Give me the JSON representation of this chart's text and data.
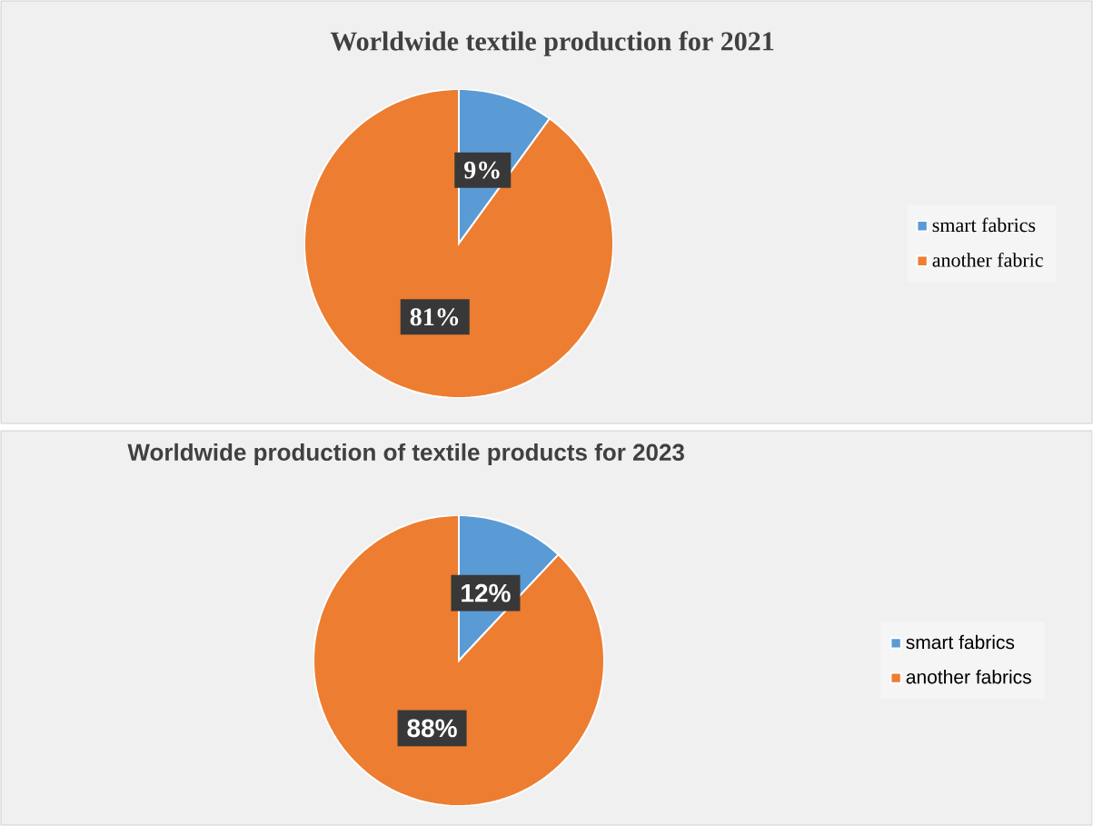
{
  "chart_data": [
    {
      "type": "pie",
      "title": "Worldwide textile production for 2021",
      "categories": [
        "smart fabrics",
        "another fabric"
      ],
      "values": [
        9,
        81
      ],
      "colors": [
        "#5b9bd5",
        "#ed7d31"
      ],
      "data_labels": true,
      "value_labels": [
        "9%",
        "81%"
      ],
      "legend": "right"
    },
    {
      "type": "pie",
      "title": "Worldwide production of textile products for 2023",
      "categories": [
        "smart fabrics",
        "another fabrics"
      ],
      "values": [
        12,
        88
      ],
      "colors": [
        "#5b9bd5",
        "#ed7d31"
      ],
      "data_labels": true,
      "value_labels": [
        "12%",
        "88%"
      ],
      "legend": "right"
    }
  ]
}
